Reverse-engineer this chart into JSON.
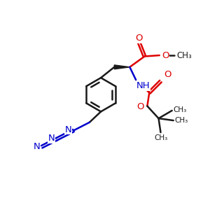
{
  "bg_color": "#ffffff",
  "bond_color": "#1a1a1a",
  "red_color": "#dd0000",
  "blue_color": "#0000cc",
  "line_width": 1.8,
  "font_size": 9.5,
  "fig_size": [
    3.0,
    3.0
  ],
  "dpi": 100,
  "xlim": [
    0,
    10
  ],
  "ylim": [
    0,
    10
  ]
}
